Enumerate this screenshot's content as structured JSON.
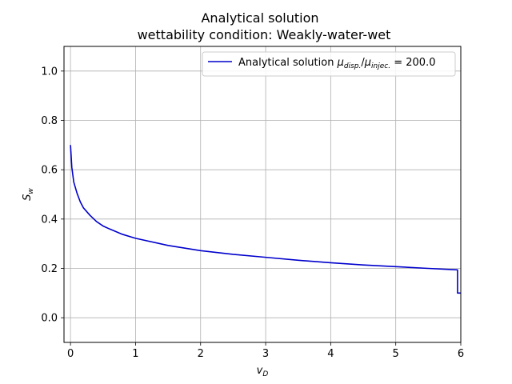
{
  "chart_data": {
    "type": "line",
    "title": "Analytical solution",
    "subtitle": "wettability condition: Weakly-water-wet",
    "xlabel_base": "v",
    "xlabel_sub": "D",
    "ylabel_base": "S",
    "ylabel_sub": "w",
    "xlim": [
      -0.1,
      6.0
    ],
    "ylim": [
      -0.1,
      1.1
    ],
    "xticks": [
      0,
      1,
      2,
      3,
      4,
      5,
      6
    ],
    "yticks": [
      0.0,
      0.2,
      0.4,
      0.6,
      0.8,
      1.0
    ],
    "ytick_labels": [
      "0.0",
      "0.2",
      "0.4",
      "0.6",
      "0.8",
      "1.0"
    ],
    "grid": true,
    "legend_position": "top-right",
    "series": [
      {
        "name_prefix": "Analytical solution ",
        "name_mu1_sub": "disp.",
        "name_mu2_sub": "injec.",
        "name_value": " = 200.0",
        "color": "#0000cc",
        "x": [
          0.0,
          0.02,
          0.05,
          0.1,
          0.15,
          0.2,
          0.3,
          0.4,
          0.5,
          0.6,
          0.8,
          1.0,
          1.5,
          2.0,
          2.5,
          3.0,
          3.5,
          4.0,
          4.5,
          5.0,
          5.5,
          5.95,
          5.95,
          6.0
        ],
        "y": [
          0.7,
          0.61,
          0.55,
          0.505,
          0.47,
          0.445,
          0.415,
          0.39,
          0.372,
          0.36,
          0.338,
          0.322,
          0.293,
          0.272,
          0.257,
          0.245,
          0.233,
          0.223,
          0.214,
          0.207,
          0.2,
          0.194,
          0.1,
          0.1
        ]
      }
    ]
  }
}
